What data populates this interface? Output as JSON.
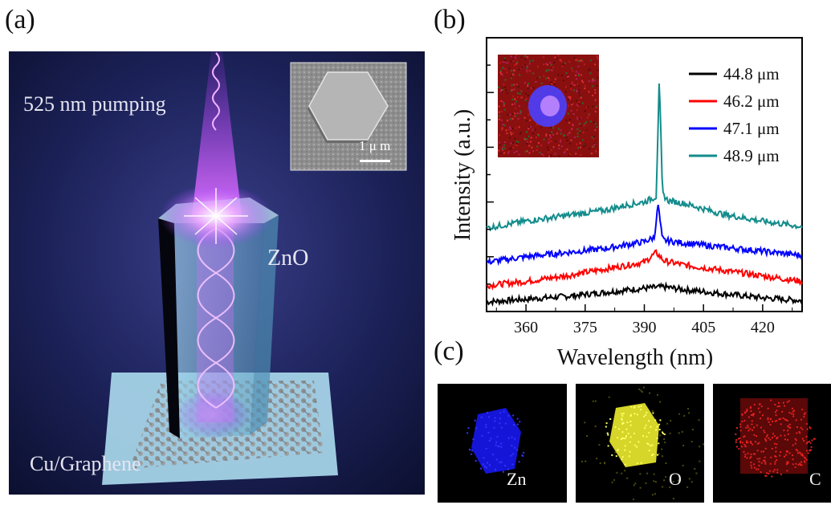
{
  "panel_labels": {
    "a": "(a)",
    "b": "(b)",
    "c": "(c)"
  },
  "panel_a": {
    "pump_label": "525 nm pumping",
    "crystal_label": "ZnO",
    "substrate_label": "Cu/Graphene",
    "inset_scale_label": "1 μ m",
    "colors": {
      "background": "#141a45",
      "pump_beam": "#c040ff",
      "crystal": "#7fb7d8",
      "substrate": "#a9d8ec"
    }
  },
  "chart_data": {
    "type": "line",
    "title": "",
    "xlabel": "Wavelength (nm)",
    "ylabel": "Intensity (a.u.)",
    "xlim": [
      350,
      430
    ],
    "xticks": [
      360,
      375,
      390,
      405,
      420
    ],
    "ylim": [
      0,
      10
    ],
    "y_tick_labels_shown": false,
    "grid": false,
    "legend_position": "top-right",
    "series": [
      {
        "name": "44.8 μm",
        "color": "#000000",
        "x": [
          350,
          360,
          370,
          380,
          390,
          395,
          400,
          410,
          420,
          430
        ],
        "y": [
          0.35,
          0.45,
          0.55,
          0.7,
          0.85,
          0.9,
          0.8,
          0.65,
          0.5,
          0.4
        ]
      },
      {
        "name": "46.2 μm",
        "color": "#ff0000",
        "x": [
          350,
          360,
          370,
          380,
          390,
          393,
          395,
          400,
          410,
          420,
          430
        ],
        "y": [
          0.95,
          1.1,
          1.3,
          1.55,
          1.8,
          2.15,
          1.85,
          1.7,
          1.5,
          1.3,
          1.1
        ]
      },
      {
        "name": "47.1 μm",
        "color": "#0000ff",
        "x": [
          350,
          360,
          370,
          380,
          390,
          392.5,
          393.5,
          394.5,
          395,
          400,
          410,
          420,
          430
        ],
        "y": [
          1.8,
          2.0,
          2.15,
          2.3,
          2.55,
          2.7,
          3.9,
          2.7,
          2.6,
          2.5,
          2.35,
          2.2,
          2.05
        ]
      },
      {
        "name": "48.9 μm",
        "color": "#138c8c",
        "x": [
          350,
          360,
          370,
          380,
          386,
          390,
          393,
          393.8,
          394.6,
          396,
          400,
          410,
          420,
          430
        ],
        "y": [
          3.05,
          3.3,
          3.5,
          3.7,
          3.9,
          4.0,
          4.2,
          8.5,
          4.3,
          4.05,
          3.95,
          3.55,
          3.3,
          3.1
        ]
      }
    ]
  },
  "panel_c": {
    "maps": [
      {
        "element": "Zn",
        "color": "#1a1aff"
      },
      {
        "element": "O",
        "color": "#e6e62a"
      },
      {
        "element": "C",
        "color": "#d01818"
      }
    ]
  }
}
